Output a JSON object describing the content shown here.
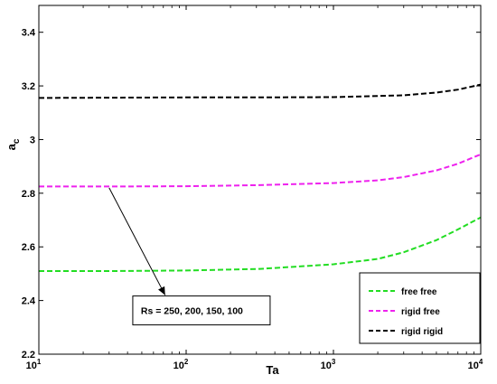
{
  "chart_data": {
    "type": "line",
    "xscale": "log",
    "xlabel": "Ta",
    "ylabel_main": "a",
    "ylabel_sub": "c",
    "xlim": [
      10,
      10000
    ],
    "ylim": [
      2.2,
      3.5
    ],
    "x_ticks": [
      {
        "base": "10",
        "exp": "1"
      },
      {
        "base": "10",
        "exp": "2"
      },
      {
        "base": "10",
        "exp": "3"
      },
      {
        "base": "10",
        "exp": "4"
      }
    ],
    "y_ticks": [
      "2.2",
      "2.4",
      "2.6",
      "2.8",
      "3",
      "3.2",
      "3.4"
    ],
    "grid": false,
    "legend_position": "bottom-right",
    "series": [
      {
        "name": "free free",
        "color": "#22dd22",
        "x": [
          10,
          31.6,
          100,
          316,
          1000,
          2000,
          3000,
          5000,
          7000,
          10000
        ],
        "y": [
          2.51,
          2.51,
          2.512,
          2.518,
          2.535,
          2.555,
          2.58,
          2.625,
          2.665,
          2.71
        ]
      },
      {
        "name": "rigid free",
        "color": "#ee22ee",
        "x": [
          10,
          31.6,
          100,
          316,
          1000,
          2000,
          3000,
          5000,
          7000,
          10000
        ],
        "y": [
          2.825,
          2.825,
          2.826,
          2.83,
          2.838,
          2.848,
          2.86,
          2.885,
          2.91,
          2.945
        ]
      },
      {
        "name": "rigid rigid",
        "color": "#000000",
        "x": [
          10,
          31.6,
          100,
          316,
          1000,
          3000,
          5000,
          7000,
          10000
        ],
        "y": [
          3.155,
          3.156,
          3.157,
          3.157,
          3.158,
          3.165,
          3.175,
          3.186,
          3.205
        ]
      }
    ],
    "annotation": {
      "text": "Rs = 250, 200, 150, 100",
      "arrow_from": {
        "x": 30,
        "y": 2.82
      },
      "arrow_to": {
        "x": 72,
        "y": 2.42
      },
      "box_anchor": {
        "x": 50,
        "y": 2.39
      }
    }
  }
}
